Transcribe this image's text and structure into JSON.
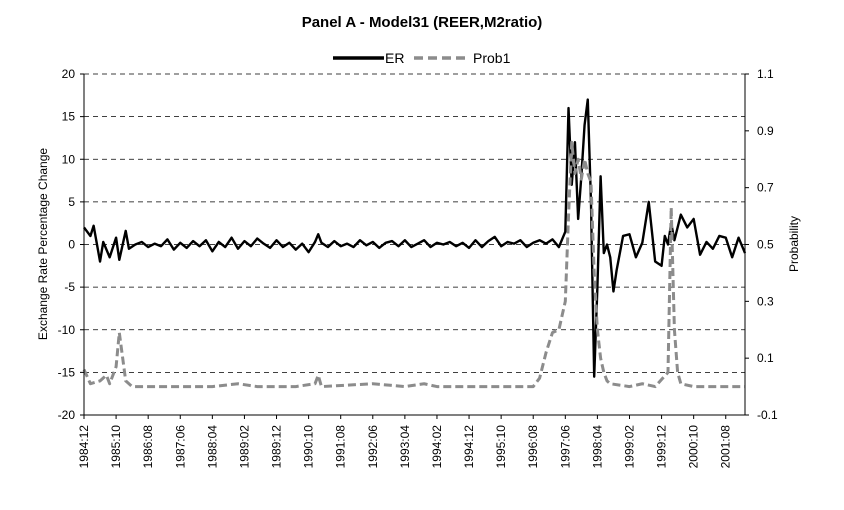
{
  "chart_data": {
    "type": "line",
    "title": "Panel A - Model31 (REER,M2ratio)",
    "ylabel_left": "Exchange Rate Percentage Change",
    "ylabel_right": "Probability",
    "ylim_left": [
      -20,
      20
    ],
    "ylim_right": [
      -0.1,
      1.1
    ],
    "yticks_left": [
      "20",
      "15",
      "10",
      "5",
      "0",
      "-5",
      "-10",
      "-15",
      "-20"
    ],
    "yticks_right": [
      "1.1",
      "0.9",
      "0.7",
      "0.5",
      "0.3",
      "0.1",
      "-0.1"
    ],
    "xtick_labels": [
      "1984:12",
      "1985:10",
      "1986:08",
      "1987:06",
      "1988:04",
      "1989:02",
      "1989:12",
      "1990:10",
      "1991:08",
      "1992:06",
      "1993:04",
      "1994:02",
      "1994:12",
      "1995:10",
      "1996:08",
      "1997:06",
      "1998:04",
      "1999:02",
      "1999:12",
      "2000:10",
      "2001:08"
    ],
    "grid": "horizontal dashed",
    "legend_position": "top-center",
    "series": [
      {
        "name": "ER",
        "axis": "left",
        "color": "#000000",
        "style": "solid",
        "points": [
          [
            "1984:12",
            2
          ],
          [
            "1985:02",
            1
          ],
          [
            "1985:03",
            2.2
          ],
          [
            "1985:05",
            -2
          ],
          [
            "1985:06",
            0.3
          ],
          [
            "1985:08",
            -1.5
          ],
          [
            "1985:10",
            0.8
          ],
          [
            "1985:11",
            -1.8
          ],
          [
            "1986:01",
            1.6
          ],
          [
            "1986:02",
            -0.5
          ],
          [
            "1986:04",
            0
          ],
          [
            "1986:06",
            0.3
          ],
          [
            "1986:08",
            -0.3
          ],
          [
            "1986:10",
            0.1
          ],
          [
            "1986:12",
            -0.2
          ],
          [
            "1987:02",
            0.6
          ],
          [
            "1987:04",
            -0.6
          ],
          [
            "1987:06",
            0.2
          ],
          [
            "1987:08",
            -0.4
          ],
          [
            "1987:10",
            0.4
          ],
          [
            "1987:12",
            -0.2
          ],
          [
            "1988:02",
            0.5
          ],
          [
            "1988:04",
            -0.8
          ],
          [
            "1988:06",
            0.3
          ],
          [
            "1988:08",
            -0.3
          ],
          [
            "1988:10",
            0.8
          ],
          [
            "1988:12",
            -0.5
          ],
          [
            "1989:02",
            0.4
          ],
          [
            "1989:04",
            -0.2
          ],
          [
            "1989:06",
            0.7
          ],
          [
            "1989:08",
            0.1
          ],
          [
            "1989:10",
            -0.4
          ],
          [
            "1989:12",
            0.5
          ],
          [
            "1990:02",
            -0.3
          ],
          [
            "1990:04",
            0.2
          ],
          [
            "1990:06",
            -0.6
          ],
          [
            "1990:08",
            0.1
          ],
          [
            "1990:10",
            -0.9
          ],
          [
            "1990:12",
            0.3
          ],
          [
            "1991:01",
            1.2
          ],
          [
            "1991:02",
            0.2
          ],
          [
            "1991:04",
            -0.3
          ],
          [
            "1991:06",
            0.4
          ],
          [
            "1991:08",
            -0.2
          ],
          [
            "1991:10",
            0.1
          ],
          [
            "1991:12",
            -0.3
          ],
          [
            "1992:02",
            0.5
          ],
          [
            "1992:04",
            -0.1
          ],
          [
            "1992:06",
            0.3
          ],
          [
            "1992:08",
            -0.4
          ],
          [
            "1992:10",
            0.2
          ],
          [
            "1992:12",
            0.4
          ],
          [
            "1993:02",
            -0.2
          ],
          [
            "1993:04",
            0.5
          ],
          [
            "1993:06",
            -0.3
          ],
          [
            "1993:08",
            0.1
          ],
          [
            "1993:10",
            0.5
          ],
          [
            "1993:12",
            -0.3
          ],
          [
            "1994:02",
            0.2
          ],
          [
            "1994:04",
            0
          ],
          [
            "1994:06",
            0.3
          ],
          [
            "1994:08",
            -0.2
          ],
          [
            "1994:10",
            0.2
          ],
          [
            "1994:12",
            -0.4
          ],
          [
            "1995:02",
            0.5
          ],
          [
            "1995:04",
            -0.3
          ],
          [
            "1995:06",
            0.4
          ],
          [
            "1995:08",
            0.9
          ],
          [
            "1995:10",
            -0.2
          ],
          [
            "1995:12",
            0.3
          ],
          [
            "1996:02",
            0.1
          ],
          [
            "1996:04",
            0.5
          ],
          [
            "1996:06",
            -0.3
          ],
          [
            "1996:08",
            0.2
          ],
          [
            "1996:10",
            0.5
          ],
          [
            "1996:12",
            0.1
          ],
          [
            "1997:02",
            0.6
          ],
          [
            "1997:04",
            -0.3
          ],
          [
            "1997:06",
            1.5
          ],
          [
            "1997:07",
            16
          ],
          [
            "1997:08",
            7
          ],
          [
            "1997:09",
            12
          ],
          [
            "1997:10",
            3
          ],
          [
            "1997:11",
            8
          ],
          [
            "1997:12",
            14
          ],
          [
            "1998:01",
            17
          ],
          [
            "1998:02",
            5
          ],
          [
            "1998:03",
            -15.5
          ],
          [
            "1998:04",
            -5
          ],
          [
            "1998:05",
            8
          ],
          [
            "1998:06",
            -1
          ],
          [
            "1998:07",
            0
          ],
          [
            "1998:08",
            -1.5
          ],
          [
            "1998:09",
            -5.5
          ],
          [
            "1998:10",
            -3
          ],
          [
            "1998:12",
            1
          ],
          [
            "1999:02",
            1.2
          ],
          [
            "1999:04",
            -1.5
          ],
          [
            "1999:06",
            0.2
          ],
          [
            "1999:08",
            5
          ],
          [
            "1999:10",
            -2
          ],
          [
            "1999:12",
            -2.5
          ],
          [
            "2000:01",
            1
          ],
          [
            "2000:02",
            0
          ],
          [
            "2000:03",
            2.5
          ],
          [
            "2000:04",
            0.5
          ],
          [
            "2000:06",
            3.5
          ],
          [
            "2000:08",
            2
          ],
          [
            "2000:10",
            3
          ],
          [
            "2000:12",
            -1.2
          ],
          [
            "2001:02",
            0.3
          ],
          [
            "2001:04",
            -0.5
          ],
          [
            "2001:06",
            1
          ],
          [
            "2001:08",
            0.8
          ],
          [
            "2001:10",
            -1.5
          ],
          [
            "2001:12",
            0.8
          ],
          [
            "2002:02",
            -1
          ]
        ]
      },
      {
        "name": "Prob1",
        "axis": "right",
        "color": "#8c8c8c",
        "style": "dashed",
        "points": [
          [
            "1984:12",
            0.06
          ],
          [
            "1985:02",
            0.01
          ],
          [
            "1985:05",
            0.02
          ],
          [
            "1985:07",
            0.04
          ],
          [
            "1985:08",
            0.01
          ],
          [
            "1985:10",
            0.07
          ],
          [
            "1985:11",
            0.19
          ],
          [
            "1986:01",
            0.02
          ],
          [
            "1986:03",
            0.0
          ],
          [
            "1986:08",
            0.0
          ],
          [
            "1987:06",
            0.0
          ],
          [
            "1988:04",
            0.0
          ],
          [
            "1988:12",
            0.01
          ],
          [
            "1989:06",
            0.0
          ],
          [
            "1990:06",
            0.0
          ],
          [
            "1990:12",
            0.01
          ],
          [
            "1991:01",
            0.04
          ],
          [
            "1991:02",
            0.0
          ],
          [
            "1992:06",
            0.01
          ],
          [
            "1993:04",
            0.0
          ],
          [
            "1993:10",
            0.01
          ],
          [
            "1994:02",
            0.0
          ],
          [
            "1994:12",
            0.0
          ],
          [
            "1995:10",
            0.0
          ],
          [
            "1996:08",
            0.0
          ],
          [
            "1996:10",
            0.03
          ],
          [
            "1996:12",
            0.12
          ],
          [
            "1997:02",
            0.19
          ],
          [
            "1997:04",
            0.2
          ],
          [
            "1997:06",
            0.3
          ],
          [
            "1997:07",
            0.6
          ],
          [
            "1997:08",
            0.86
          ],
          [
            "1997:09",
            0.75
          ],
          [
            "1997:10",
            0.8
          ],
          [
            "1997:11",
            0.73
          ],
          [
            "1997:12",
            0.8
          ],
          [
            "1998:01",
            0.75
          ],
          [
            "1998:02",
            0.72
          ],
          [
            "1998:03",
            0.4
          ],
          [
            "1998:04",
            0.2
          ],
          [
            "1998:05",
            0.1
          ],
          [
            "1998:06",
            0.05
          ],
          [
            "1998:07",
            0.02
          ],
          [
            "1998:08",
            0.01
          ],
          [
            "1999:02",
            0.0
          ],
          [
            "1999:06",
            0.01
          ],
          [
            "1999:10",
            0.0
          ],
          [
            "2000:02",
            0.05
          ],
          [
            "2000:03",
            0.63
          ],
          [
            "2000:04",
            0.2
          ],
          [
            "2000:05",
            0.05
          ],
          [
            "2000:06",
            0.01
          ],
          [
            "2000:10",
            0.0
          ],
          [
            "2001:08",
            0.0
          ],
          [
            "2002:02",
            0.0
          ]
        ]
      }
    ]
  }
}
